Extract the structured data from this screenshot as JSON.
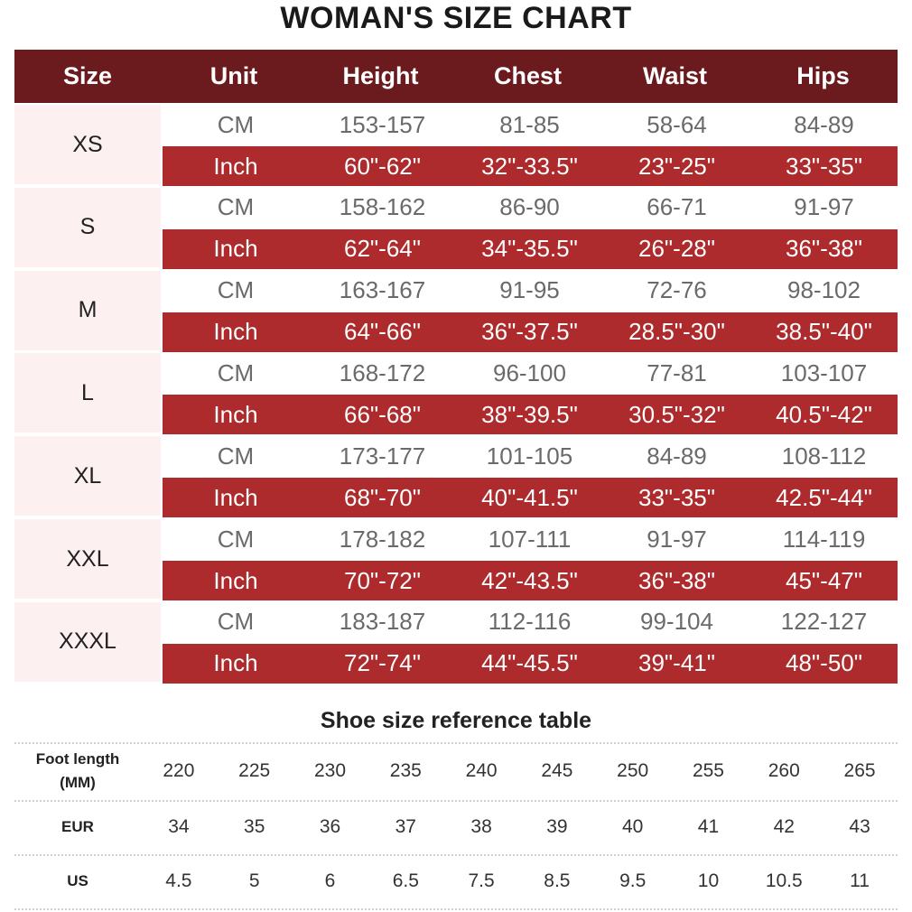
{
  "title": "WOMAN'S SIZE CHART",
  "colors": {
    "header_bg": "#6b1a1e",
    "inch_row_bg": "#ad2b2d",
    "size_cell_bg": "#fdf0f1",
    "header_text": "#ffffff"
  },
  "size_table": {
    "headers": [
      "Size",
      "Unit",
      "Height",
      "Chest",
      "Waist",
      "Hips"
    ],
    "rows": [
      {
        "size": "XS",
        "cm": {
          "unit": "CM",
          "height": "153-157",
          "chest": "81-85",
          "waist": "58-64",
          "hips": "84-89"
        },
        "inch": {
          "unit": "Inch",
          "height": "60\"-62\"",
          "chest": "32\"-33.5\"",
          "waist": "23\"-25\"",
          "hips": "33\"-35\""
        }
      },
      {
        "size": "S",
        "cm": {
          "unit": "CM",
          "height": "158-162",
          "chest": "86-90",
          "waist": "66-71",
          "hips": "91-97"
        },
        "inch": {
          "unit": "Inch",
          "height": "62\"-64\"",
          "chest": "34\"-35.5\"",
          "waist": "26\"-28\"",
          "hips": "36\"-38\""
        }
      },
      {
        "size": "M",
        "cm": {
          "unit": "CM",
          "height": "163-167",
          "chest": "91-95",
          "waist": "72-76",
          "hips": "98-102"
        },
        "inch": {
          "unit": "Inch",
          "height": "64\"-66\"",
          "chest": "36\"-37.5\"",
          "waist": "28.5\"-30\"",
          "hips": "38.5\"-40\""
        }
      },
      {
        "size": "L",
        "cm": {
          "unit": "CM",
          "height": "168-172",
          "chest": "96-100",
          "waist": "77-81",
          "hips": "103-107"
        },
        "inch": {
          "unit": "Inch",
          "height": "66\"-68\"",
          "chest": "38\"-39.5\"",
          "waist": "30.5\"-32\"",
          "hips": "40.5\"-42\""
        }
      },
      {
        "size": "XL",
        "cm": {
          "unit": "CM",
          "height": "173-177",
          "chest": "101-105",
          "waist": "84-89",
          "hips": "108-112"
        },
        "inch": {
          "unit": "Inch",
          "height": "68\"-70\"",
          "chest": "40\"-41.5\"",
          "waist": "33\"-35\"",
          "hips": "42.5\"-44\""
        }
      },
      {
        "size": "XXL",
        "cm": {
          "unit": "CM",
          "height": "178-182",
          "chest": "107-111",
          "waist": "91-97",
          "hips": "114-119"
        },
        "inch": {
          "unit": "Inch",
          "height": "70\"-72\"",
          "chest": "42\"-43.5\"",
          "waist": "36\"-38\"",
          "hips": "45\"-47\""
        }
      },
      {
        "size": "XXXL",
        "cm": {
          "unit": "CM",
          "height": "183-187",
          "chest": "112-116",
          "waist": "99-104",
          "hips": "122-127"
        },
        "inch": {
          "unit": "Inch",
          "height": "72\"-74\"",
          "chest": "44\"-45.5\"",
          "waist": "39\"-41\"",
          "hips": "48\"-50\""
        }
      }
    ]
  },
  "shoe_table": {
    "title": "Shoe size reference table",
    "rows": [
      {
        "label_line1": "Foot length",
        "label_line2": "(MM)",
        "values": [
          "220",
          "225",
          "230",
          "235",
          "240",
          "245",
          "250",
          "255",
          "260",
          "265"
        ]
      },
      {
        "label_line1": "EUR",
        "label_line2": "",
        "values": [
          "34",
          "35",
          "36",
          "37",
          "38",
          "39",
          "40",
          "41",
          "42",
          "43"
        ]
      },
      {
        "label_line1": "US",
        "label_line2": "",
        "values": [
          "4.5",
          "5",
          "6",
          "6.5",
          "7.5",
          "8.5",
          "9.5",
          "10",
          "10.5",
          "11"
        ]
      }
    ]
  }
}
